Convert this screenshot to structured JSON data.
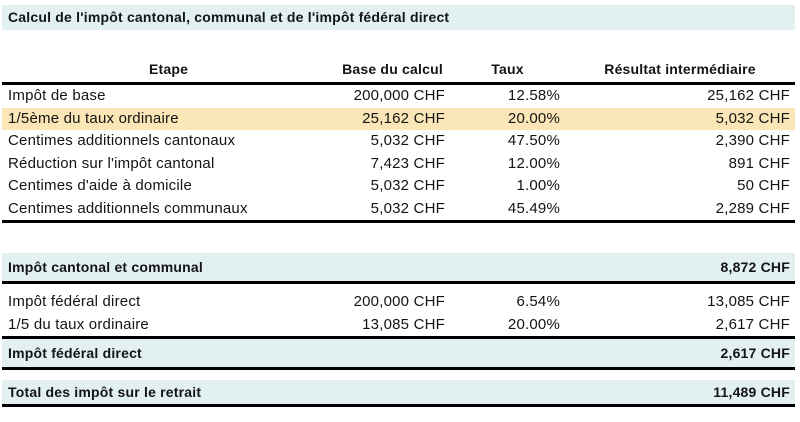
{
  "title": "Calcul de l'impôt cantonal, communal et de l'impôt fédéral direct",
  "colors": {
    "band_blue": "#e2f0f2",
    "highlight_orange": "#fbe6b7",
    "line_black": "#000000"
  },
  "table": {
    "headers": [
      "Etape",
      "Base du calcul",
      "Taux",
      "Résultat intermédiaire"
    ],
    "rows_cantonal": [
      {
        "etape": "Impôt de base",
        "base": "200,000 CHF",
        "taux": "12.58%",
        "resultat": "25,162 CHF",
        "highlighted": false
      },
      {
        "etape": "1/5ème du taux ordinaire",
        "base": "25,162 CHF",
        "taux": "20.00%",
        "resultat": "5,032 CHF",
        "highlighted": true
      },
      {
        "etape": "Centimes additionnels cantonaux",
        "base": "5,032 CHF",
        "taux": "47.50%",
        "resultat": "2,390 CHF",
        "highlighted": false
      },
      {
        "etape": "Réduction sur l'impôt cantonal",
        "base": "7,423 CHF",
        "taux": "12.00%",
        "resultat": "891 CHF",
        "highlighted": false
      },
      {
        "etape": "Centimes d'aide à domicile",
        "base": "5,032 CHF",
        "taux": "1.00%",
        "resultat": "50 CHF",
        "highlighted": false
      },
      {
        "etape": "Centimes additionnels communaux",
        "base": "5,032 CHF",
        "taux": "45.49%",
        "resultat": "2,289 CHF",
        "highlighted": false
      }
    ],
    "subtotal_cantonal": {
      "label": "Impôt cantonal et communal",
      "value": "8,872 CHF"
    },
    "rows_federal": [
      {
        "etape": "Impôt fédéral direct",
        "base": "200,000 CHF",
        "taux": "6.54%",
        "resultat": "13,085 CHF"
      },
      {
        "etape": "1/5 du taux ordinaire",
        "base": "13,085 CHF",
        "taux": "20.00%",
        "resultat": "2,617 CHF"
      }
    ],
    "subtotal_federal": {
      "label": "Impôt fédéral direct",
      "value": "2,617 CHF"
    },
    "total": {
      "label": "Total des impôt sur le retrait",
      "value": "11,489 CHF"
    }
  }
}
